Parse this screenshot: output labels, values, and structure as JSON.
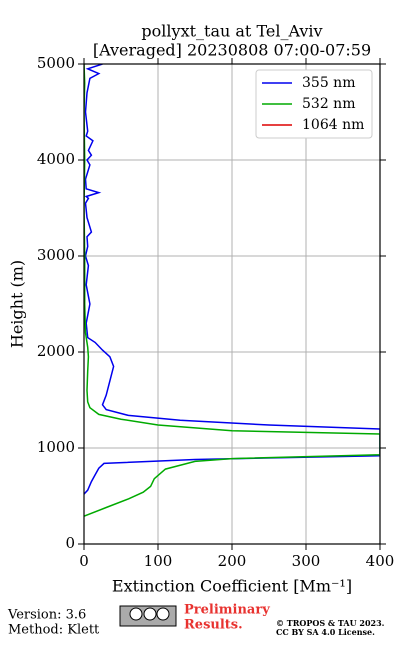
{
  "chart_data": {
    "type": "line",
    "title": [
      "pollyxt_tau at Tel_Aviv",
      "[Averaged] 20230808 07:00-07:59"
    ],
    "x_label": "Extinction Coefficient [Mm⁻¹]",
    "y_label": "Height (m)",
    "xlim": [
      0,
      400
    ],
    "xticks": [
      0,
      100,
      200,
      300,
      400
    ],
    "ylim": [
      0,
      5000
    ],
    "yticks": [
      0,
      1000,
      2000,
      3000,
      4000,
      5000
    ],
    "grid": true,
    "legend": "upper right",
    "series": [
      {
        "name": "355 nm",
        "color": "#0000ee",
        "x": [
          0,
          5,
          10,
          15,
          20,
          27,
          150,
          400,
          400,
          250,
          130,
          60,
          30,
          25,
          30,
          35,
          40,
          35,
          25,
          15,
          5,
          3,
          8,
          3,
          6,
          2,
          5,
          4,
          10,
          4,
          2,
          6,
          3,
          20,
          3,
          2,
          8,
          4,
          10,
          6,
          12,
          3,
          5,
          2,
          4,
          8,
          20,
          5,
          25
        ],
        "values": [
          520,
          560,
          650,
          720,
          790,
          840,
          880,
          920,
          1198,
          1240,
          1290,
          1340,
          1400,
          1450,
          1550,
          1700,
          1850,
          1950,
          2020,
          2100,
          2150,
          2300,
          2500,
          2700,
          2900,
          3000,
          3100,
          3200,
          3250,
          3400,
          3550,
          3600,
          3620,
          3660,
          3700,
          3800,
          3950,
          4000,
          4050,
          4100,
          4200,
          4250,
          4300,
          4500,
          4700,
          4850,
          4900,
          4950,
          5000
        ]
      },
      {
        "name": "532 nm",
        "color": "#00aa00",
        "x": [
          0,
          30,
          60,
          80,
          90,
          95,
          110,
          150,
          200,
          400,
          400,
          200,
          100,
          50,
          20,
          8,
          5,
          4,
          5,
          6,
          5,
          2,
          1,
          1,
          0,
          1,
          0,
          1,
          0
        ],
        "values": [
          290,
          380,
          470,
          540,
          600,
          680,
          780,
          860,
          890,
          930,
          1146,
          1180,
          1240,
          1300,
          1350,
          1420,
          1480,
          1600,
          1800,
          1950,
          2050,
          2200,
          2500,
          3000,
          3500,
          4000,
          4500,
          4800,
          5000
        ]
      },
      {
        "name": "1064 nm",
        "color": "#dd0000",
        "x": [],
        "values": []
      }
    ]
  },
  "footer": {
    "version": "Version: 3.6",
    "method": "Method: Klett",
    "preliminary": [
      "Preliminary",
      "Results."
    ],
    "copyright": [
      "© TROPOS & TAU 2023.",
      "CC BY SA 4.0 License."
    ]
  }
}
